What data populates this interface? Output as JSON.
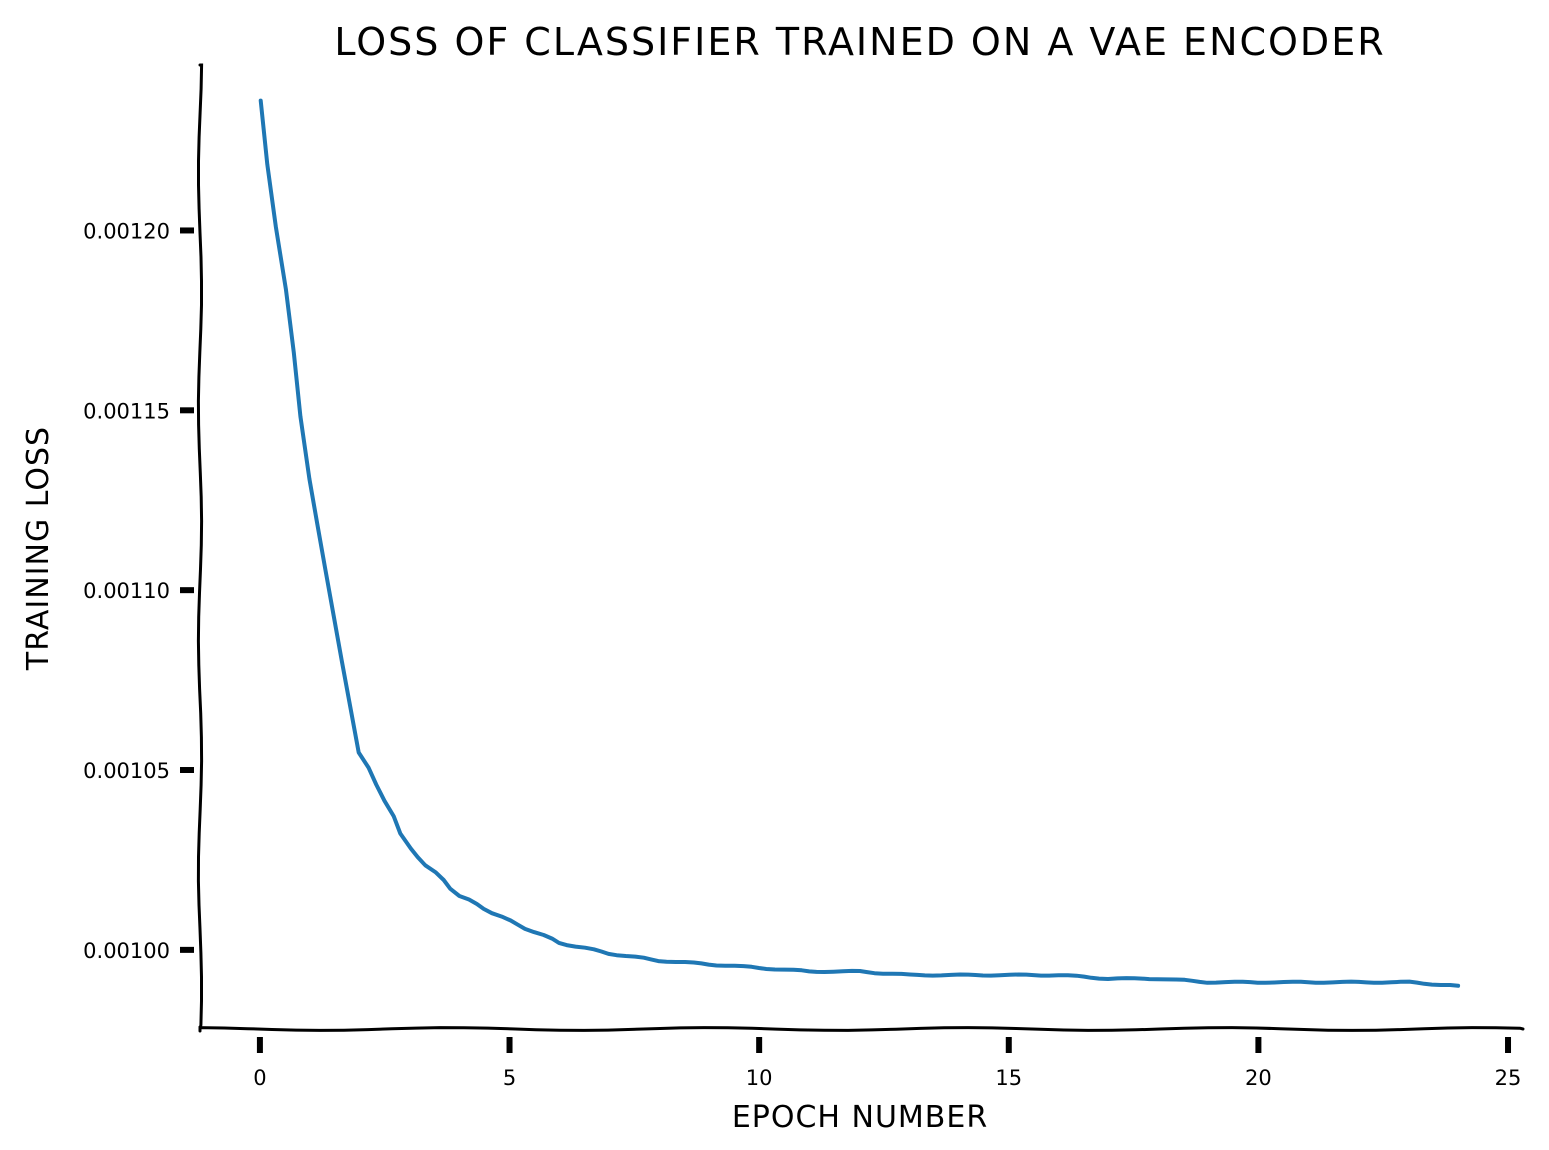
{
  "chart_data": {
    "type": "line",
    "title": "LOSS OF CLASSIFIER TRAINED ON A VAE ENCODER",
    "xlabel": "EPOCH NUMBER",
    "ylabel": "TRAINING LOSS",
    "xlim": [
      -1.2,
      25.3
    ],
    "ylim": [
      0.000978,
      0.001246
    ],
    "xticks": [
      0,
      5,
      10,
      15,
      20,
      25
    ],
    "xtick_labels": [
      "0",
      "5",
      "10",
      "15",
      "20",
      "25"
    ],
    "yticks": [
      0.001,
      0.00105,
      0.0011,
      0.00115,
      0.0012
    ],
    "ytick_labels": [
      "0.00100",
      "0.00105",
      "0.00110",
      "0.00115",
      "0.00120"
    ],
    "grid": false,
    "series": [
      {
        "color": "#1f77b4",
        "x": [
          0,
          1,
          2,
          3,
          4,
          5,
          6,
          7,
          8,
          9,
          10,
          11,
          12,
          13,
          14,
          15,
          16,
          17,
          18,
          19,
          20,
          21,
          22,
          23,
          24
        ],
        "y": [
          0.001236,
          0.001131,
          0.001055,
          0.001028,
          0.001015,
          0.001008,
          0.001002,
          0.000999,
          0.000997,
          0.000996,
          0.000995,
          0.000994,
          0.000994,
          0.000993,
          0.000993,
          0.000993,
          0.000993,
          0.000992,
          0.000992,
          0.000991,
          0.000991,
          0.000991,
          0.000991,
          0.000991,
          0.00099
        ]
      }
    ]
  }
}
